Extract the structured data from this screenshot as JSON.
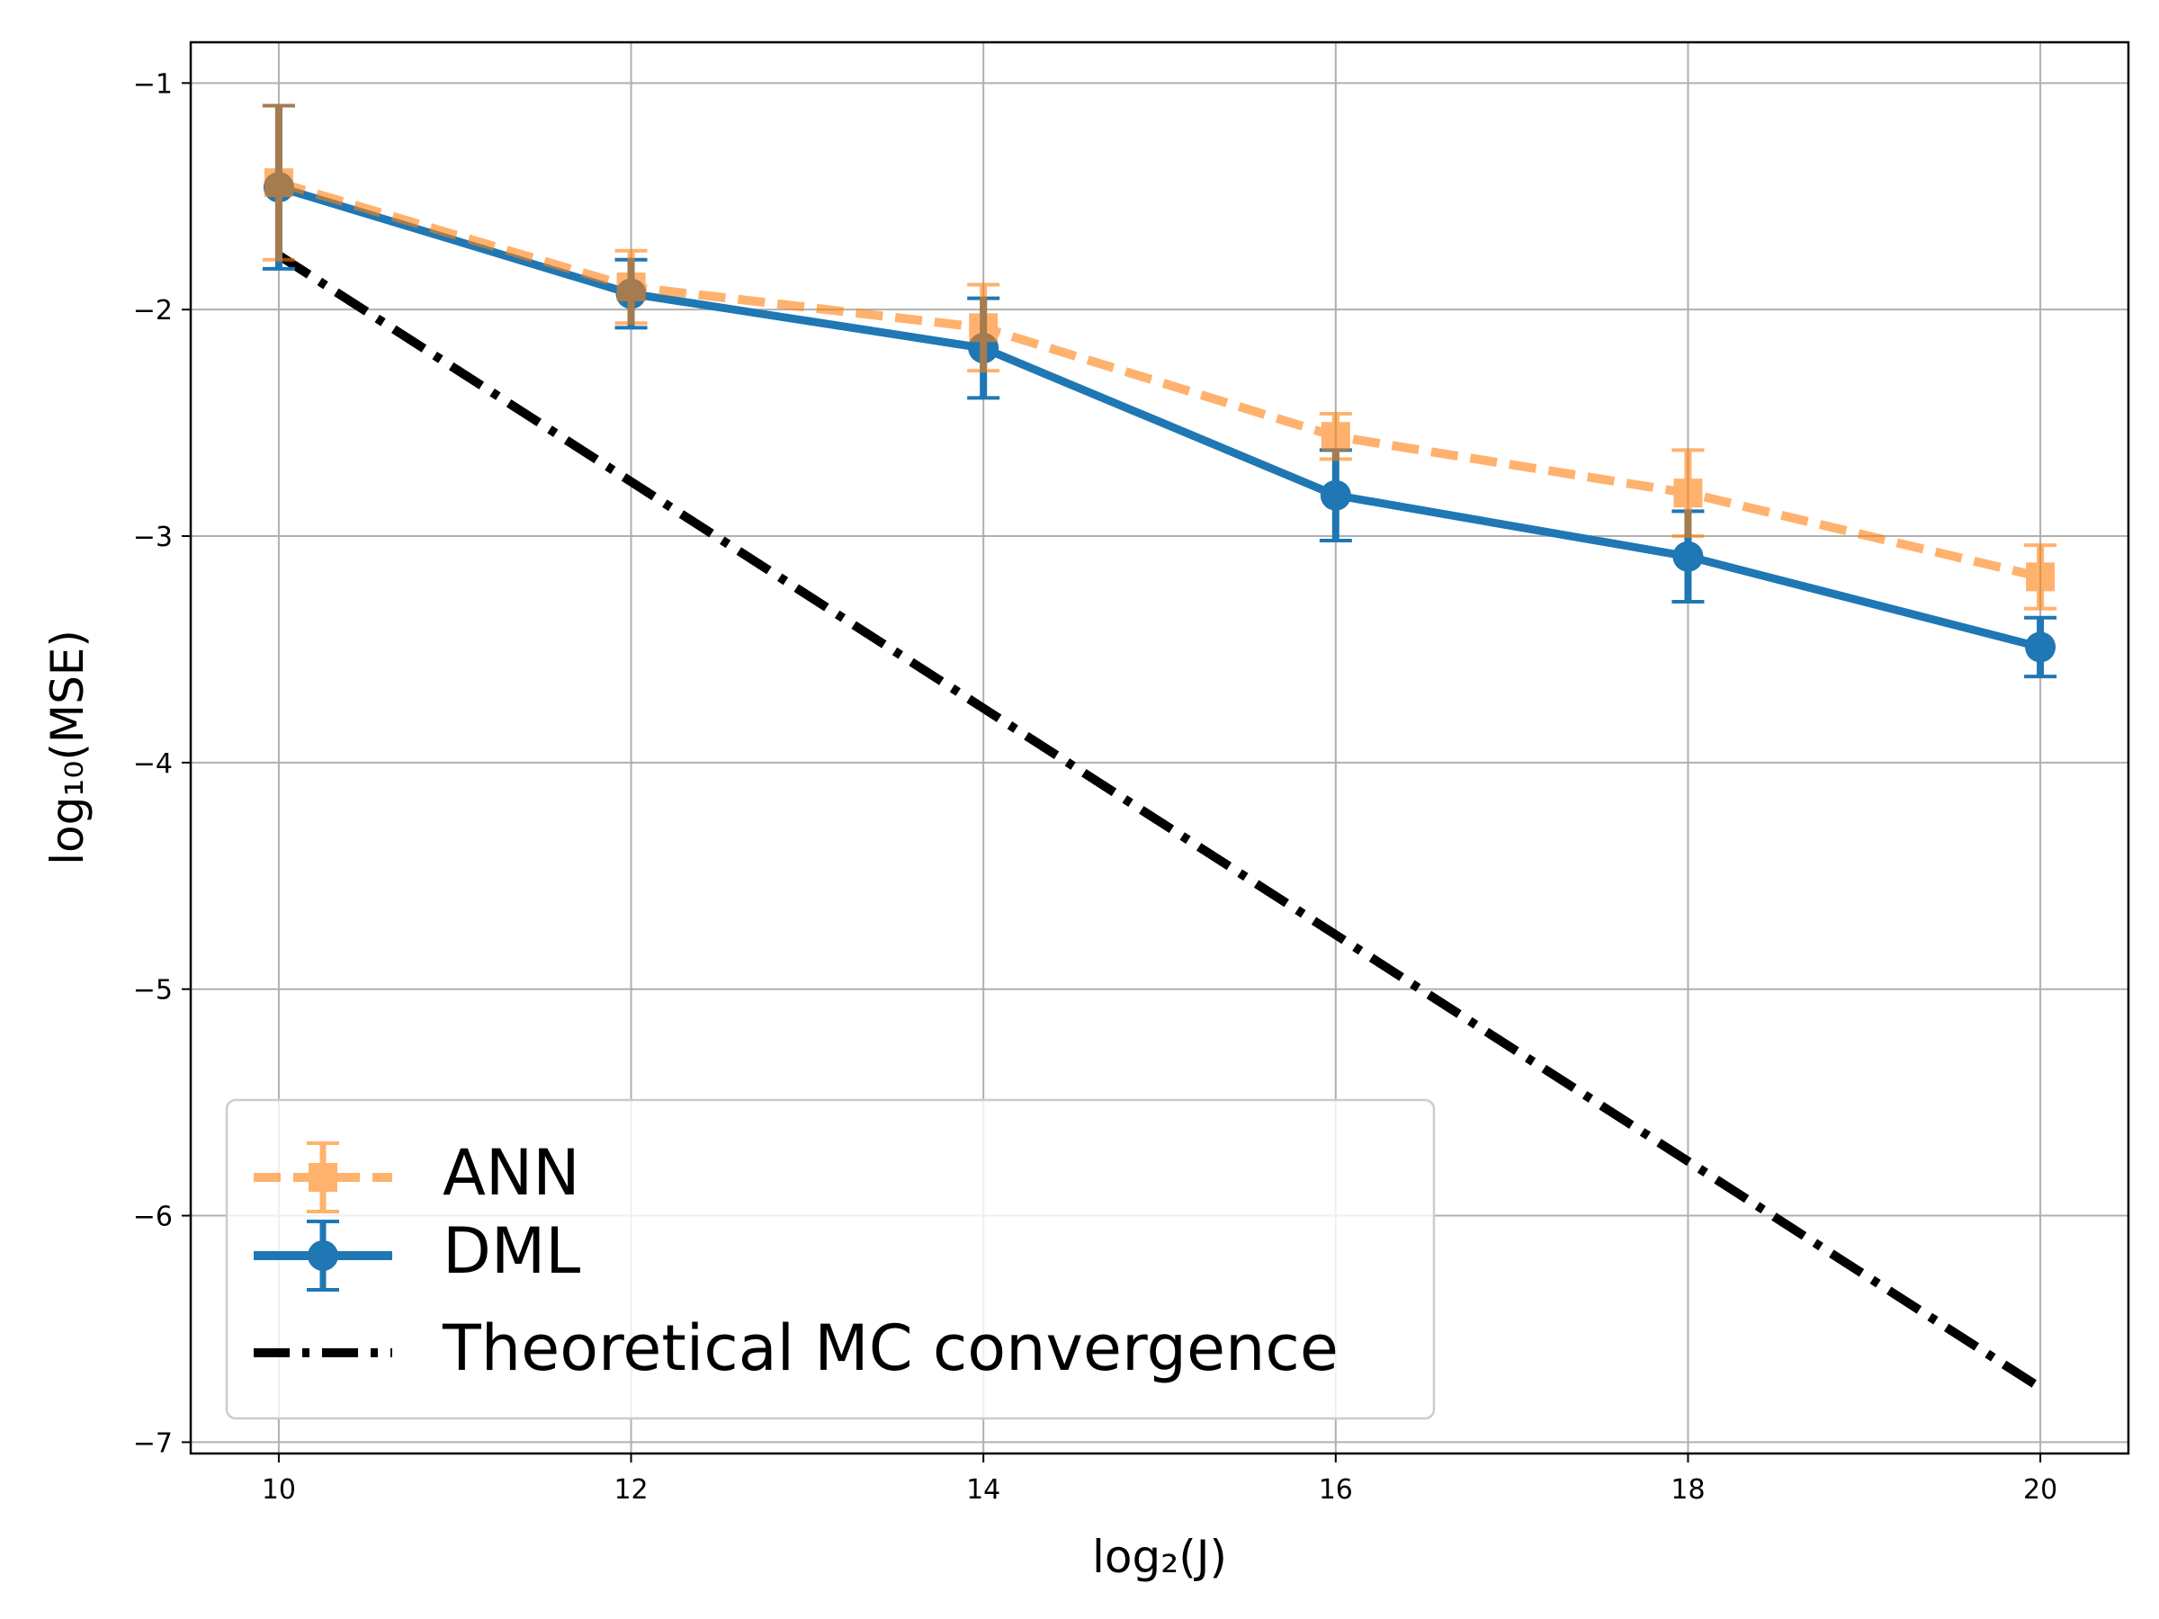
{
  "chart_data": {
    "type": "line",
    "title": "",
    "xlabel": "log₂(J)",
    "ylabel": "log₁₀(MSE)",
    "xlim": [
      9.5,
      20.5
    ],
    "ylim": [
      -7.05,
      -0.82
    ],
    "x": [
      10,
      12,
      14,
      16,
      18,
      20
    ],
    "xticks": [
      10,
      12,
      14,
      16,
      18,
      20
    ],
    "xtick_labels": [
      "10",
      "12",
      "14",
      "16",
      "18",
      "20"
    ],
    "yticks": [
      -1,
      -2,
      -3,
      -4,
      -5,
      -6,
      -7
    ],
    "ytick_labels": [
      "−1",
      "−2",
      "−3",
      "−4",
      "−5",
      "−6",
      "−7"
    ],
    "grid": true,
    "legend_position": "lower-left",
    "series": [
      {
        "name": "ANN",
        "values": [
          -1.44,
          -1.9,
          -2.08,
          -2.56,
          -2.81,
          -3.18
        ],
        "error": [
          0.34,
          0.16,
          0.19,
          0.1,
          0.19,
          0.14
        ],
        "color": "#ff7f0e",
        "opacity": 0.6,
        "style": "dashed",
        "marker": "square"
      },
      {
        "name": "DML",
        "values": [
          -1.46,
          -1.93,
          -2.17,
          -2.82,
          -3.09,
          -3.49
        ],
        "error": [
          0.36,
          0.15,
          0.22,
          0.2,
          0.2,
          0.13
        ],
        "color": "#1f77b4",
        "opacity": 1,
        "style": "solid",
        "marker": "circle"
      },
      {
        "name": "Theoretical MC convergence",
        "values": [
          -1.76,
          -2.76,
          -3.76,
          -4.76,
          -5.76,
          -6.76
        ],
        "color": "#000000",
        "opacity": 1,
        "style": "dashdot",
        "marker": "none"
      }
    ]
  }
}
